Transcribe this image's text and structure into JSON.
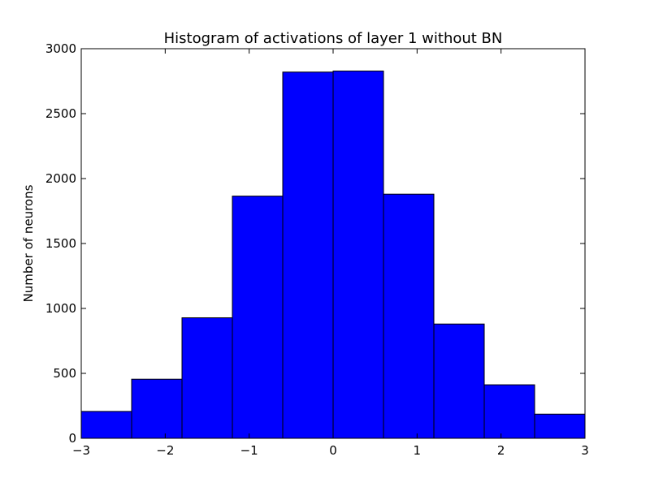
{
  "chart_data": {
    "type": "bar",
    "title": "Histogram of activations of layer 1  without BN",
    "xlabel": "",
    "ylabel": "Number of neurons",
    "bin_edges": [
      -3,
      -2.4,
      -1.8,
      -1.2,
      -0.6,
      0,
      0.6,
      1.2,
      1.8,
      2.4,
      3
    ],
    "values": [
      207,
      455,
      928,
      1865,
      2820,
      2828,
      1880,
      880,
      412,
      186
    ],
    "xlim": [
      -3,
      3
    ],
    "ylim": [
      0,
      3000
    ],
    "xticks": [
      -3,
      -2,
      -1,
      0,
      1,
      2,
      3
    ],
    "xtick_labels": [
      "−3",
      "−2",
      "−1",
      "0",
      "1",
      "2",
      "3"
    ],
    "yticks": [
      0,
      500,
      1000,
      1500,
      2000,
      2500,
      3000
    ],
    "ytick_labels": [
      "0",
      "500",
      "1000",
      "1500",
      "2000",
      "2500",
      "3000"
    ],
    "bar_color": "#0000ff",
    "edge_color": "#000000",
    "grid": false,
    "legend": "none"
  }
}
